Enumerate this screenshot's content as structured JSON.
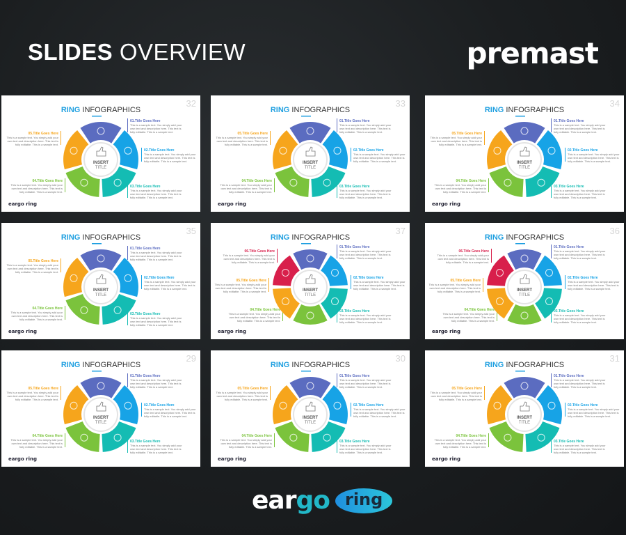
{
  "header": {
    "title_bold": "SLIDES",
    "title_light": "OVERVIEW",
    "brand": "premast"
  },
  "footer": {
    "logo_part1": "ear",
    "logo_part2": "go",
    "logo_badge": "ring"
  },
  "slide_common": {
    "title_accent": "RING",
    "title_rest": " INFOGRAPHICS",
    "center_line1": "INSERT",
    "center_line2": "TITLE",
    "item_titles": [
      "01.Title Goes Here",
      "02.Title Goes Here",
      "03.Title Goes Here",
      "04.Title Goes Here",
      "05.Title Goes Here",
      "06.Title Goes Here"
    ],
    "sample_text_lines": [
      "This is a sample text. You simply add your",
      "own text and description here. This text is",
      "fully editable. This is a sample text."
    ],
    "mini_logo": "eargo ring"
  },
  "colors": {
    "item1": "#5b6cc0",
    "item2": "#17a3e6",
    "item3": "#14bcb3",
    "item4": "#7bc33c",
    "item5": "#f6a51c",
    "item6": "#d81f4b",
    "accent": "#1e9fe0"
  },
  "slides": [
    {
      "number": "32",
      "segments": 5
    },
    {
      "number": "33",
      "segments": 5
    },
    {
      "number": "34",
      "segments": 5
    },
    {
      "number": "35",
      "segments": 5
    },
    {
      "number": "37",
      "segments": 6
    },
    {
      "number": "36",
      "segments": 6
    },
    {
      "number": "29",
      "segments": 5
    },
    {
      "number": "30",
      "segments": 5
    },
    {
      "number": "31",
      "segments": 5
    }
  ]
}
